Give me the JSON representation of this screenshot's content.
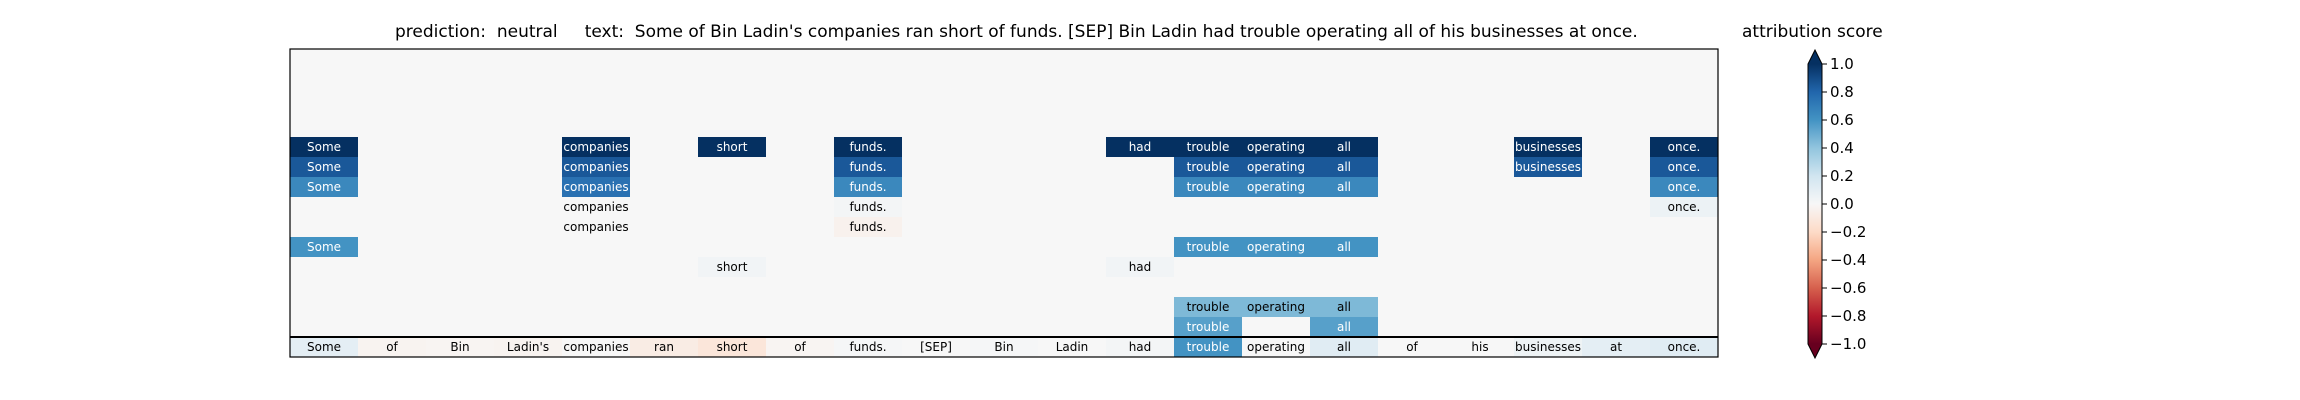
{
  "title": {
    "prediction_label": "prediction:",
    "prediction_value": "neutral",
    "text_label": "text:",
    "text_value": "Some of Bin Ladin's companies ran short of funds. [SEP] Bin Ladin had trouble operating all of his businesses at once."
  },
  "colorbar": {
    "title": "attribution score",
    "min": -1.0,
    "max": 1.0,
    "ticks": [
      1.0,
      0.8,
      0.6,
      0.4,
      0.2,
      0.0,
      -0.2,
      -0.4,
      -0.6,
      -0.8,
      -1.0
    ],
    "tick_labels": [
      "1.0",
      "0.8",
      "0.6",
      "0.4",
      "0.2",
      "0.0",
      "−0.2",
      "−0.4",
      "−0.6",
      "−0.8",
      "−1.0"
    ],
    "colormap": "RdBu",
    "extend": "both"
  },
  "chart_data": {
    "type": "heatmap",
    "tokens": [
      "Some",
      "of",
      "Bin",
      "Ladin's",
      "companies",
      "ran",
      "short",
      "of",
      "funds.",
      "[SEP]",
      "Bin",
      "Ladin",
      "had",
      "trouble",
      "operating",
      "all",
      "of",
      "his",
      "businesses",
      "at",
      "once."
    ],
    "background_value": 0.0,
    "bottom_row": [
      0.1,
      -0.03,
      -0.02,
      -0.03,
      0.0,
      -0.08,
      -0.12,
      -0.02,
      0.01,
      0.0,
      0.01,
      0.0,
      0.02,
      0.6,
      0.0,
      0.12,
      0.0,
      0.0,
      0.05,
      0.1,
      0.12
    ],
    "rows": [
      {
        "Some": 1.0,
        "companies": 1.0,
        "short": 1.0,
        "funds.": 1.0,
        "had": 1.0,
        "trouble": 1.0,
        "operating": 1.0,
        "all": 1.0,
        "businesses": 1.0,
        "once.": 1.0
      },
      {
        "Some": 0.85,
        "companies": 0.85,
        "funds.": 0.85,
        "trouble": 0.85,
        "operating": 0.85,
        "all": 0.85,
        "businesses": 0.85,
        "once.": 0.85
      },
      {
        "Some": 0.65,
        "companies": 0.75,
        "funds.": 0.65,
        "trouble": 0.65,
        "operating": 0.65,
        "all": 0.65,
        "once.": 0.65
      },
      {
        "companies": 0.0,
        "funds.": 0.02,
        "once.": 0.06
      },
      {
        "companies": 0.0,
        "funds.": -0.04
      },
      {
        "Some": 0.6,
        "trouble": 0.6,
        "operating": 0.6,
        "all": 0.6
      },
      {
        "short": 0.03,
        "had": 0.03
      },
      {},
      {
        "trouble": 0.45,
        "operating": 0.45,
        "all": 0.45
      },
      {
        "trouble": 0.55,
        "all": 0.55
      }
    ]
  }
}
